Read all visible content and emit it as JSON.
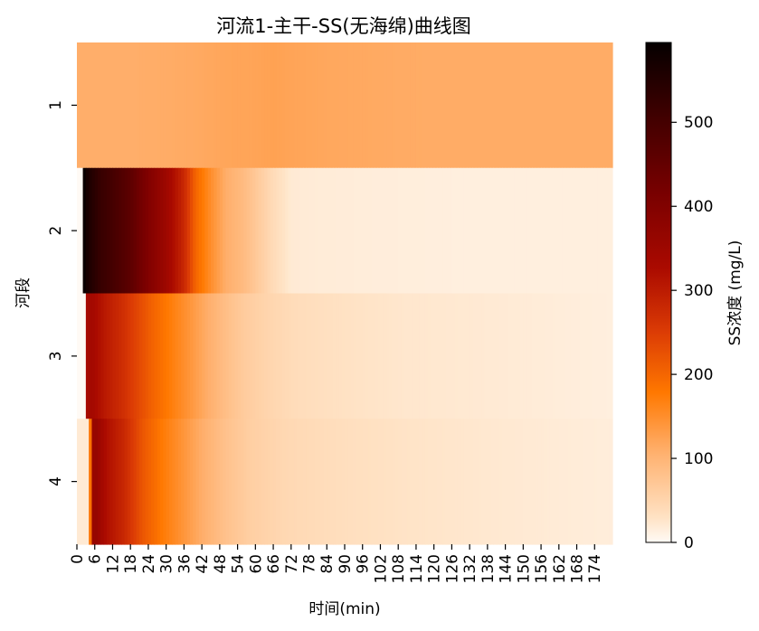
{
  "chart_data": {
    "type": "heatmap",
    "title": "河流1-主干-SS(无海绵)曲线图",
    "xlabel": "时间(min)",
    "ylabel": "河段",
    "y_categories": [
      "1",
      "2",
      "3",
      "4"
    ],
    "x_tick_labels": [
      "0",
      "6",
      "12",
      "18",
      "24",
      "30",
      "36",
      "42",
      "48",
      "54",
      "60",
      "66",
      "72",
      "78",
      "84",
      "90",
      "96",
      "102",
      "108",
      "114",
      "120",
      "126",
      "132",
      "138",
      "144",
      "150",
      "156",
      "162",
      "168",
      "174"
    ],
    "x_range_min": [
      0,
      180
    ],
    "colorbar": {
      "label": "SS浓度 (mg/L)",
      "range": [
        0,
        595
      ],
      "ticks": [
        0,
        100,
        200,
        300,
        400,
        500
      ],
      "colormap": "gist_heat_r"
    },
    "rows": [
      {
        "segment": "1",
        "profile": [
          [
            0,
            110
          ],
          [
            4,
            110
          ],
          [
            10,
            110
          ],
          [
            20,
            110
          ],
          [
            30,
            112
          ],
          [
            40,
            115
          ],
          [
            50,
            120
          ],
          [
            60,
            122
          ],
          [
            66,
            125
          ],
          [
            72,
            122
          ],
          [
            84,
            118
          ],
          [
            100,
            115
          ],
          [
            120,
            112
          ],
          [
            150,
            112
          ],
          [
            180,
            112
          ]
        ]
      },
      {
        "segment": "2",
        "start": 2,
        "profile": [
          [
            2,
            595
          ],
          [
            4,
            560
          ],
          [
            8,
            520
          ],
          [
            12,
            500
          ],
          [
            18,
            460
          ],
          [
            24,
            400
          ],
          [
            30,
            350
          ],
          [
            36,
            280
          ],
          [
            40,
            200
          ],
          [
            45,
            150
          ],
          [
            50,
            110
          ],
          [
            56,
            90
          ],
          [
            62,
            60
          ],
          [
            66,
            40
          ],
          [
            72,
            20
          ],
          [
            80,
            18
          ],
          [
            100,
            16
          ],
          [
            130,
            14
          ],
          [
            160,
            14
          ],
          [
            180,
            14
          ]
        ]
      },
      {
        "segment": "3",
        "start": 3,
        "profile": [
          [
            3,
            330
          ],
          [
            5,
            340
          ],
          [
            10,
            300
          ],
          [
            14,
            280
          ],
          [
            20,
            240
          ],
          [
            26,
            200
          ],
          [
            32,
            170
          ],
          [
            38,
            140
          ],
          [
            44,
            110
          ],
          [
            50,
            85
          ],
          [
            56,
            65
          ],
          [
            64,
            50
          ],
          [
            74,
            38
          ],
          [
            90,
            30
          ],
          [
            110,
            24
          ],
          [
            140,
            20
          ],
          [
            165,
            16
          ],
          [
            180,
            14
          ]
        ]
      },
      {
        "segment": "4",
        "start": 3,
        "lead_value": 20,
        "profile": [
          [
            4,
            20
          ],
          [
            5,
            350
          ],
          [
            6,
            370
          ],
          [
            10,
            320
          ],
          [
            16,
            280
          ],
          [
            22,
            220
          ],
          [
            28,
            180
          ],
          [
            34,
            150
          ],
          [
            42,
            110
          ],
          [
            50,
            80
          ],
          [
            58,
            60
          ],
          [
            70,
            45
          ],
          [
            90,
            35
          ],
          [
            110,
            28
          ],
          [
            140,
            22
          ],
          [
            165,
            18
          ],
          [
            180,
            16
          ]
        ]
      }
    ]
  }
}
